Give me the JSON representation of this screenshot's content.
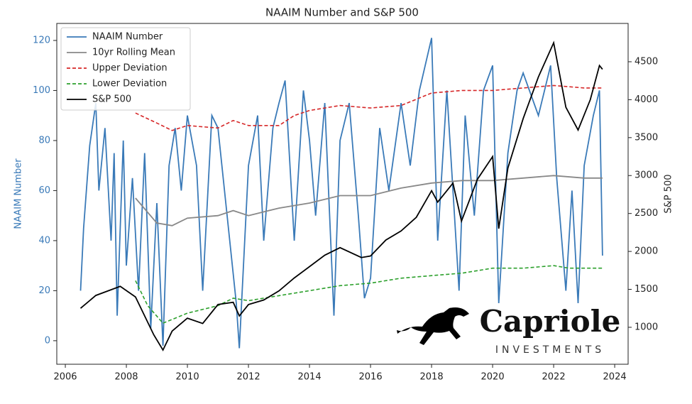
{
  "chart_data": {
    "type": "line",
    "title": "NAAIM Number and S&P 500",
    "ylabel": "NAAIM Number",
    "y2label": "S&P 500",
    "xlim": [
      2005.72,
      2024.44
    ],
    "xticks": [
      2006,
      2008,
      2010,
      2012,
      2014,
      2016,
      2018,
      2020,
      2022,
      2024
    ],
    "ylim": [
      -9.4,
      126.8
    ],
    "yticks": [
      0,
      20,
      40,
      60,
      80,
      100,
      120
    ],
    "y2lim": [
      513,
      5005
    ],
    "y2ticks": [
      1000,
      1500,
      2000,
      2500,
      3000,
      3500,
      4000,
      4500
    ],
    "legend": "upper left",
    "logo": {
      "name": "Capriole",
      "tagline": "INVESTMENTS"
    },
    "series": [
      {
        "name": "NAAIM Number",
        "color": "#3a7ab8",
        "style": "solid",
        "x": [
          2006.5,
          2006.6,
          2006.8,
          2007.0,
          2007.1,
          2007.3,
          2007.5,
          2007.6,
          2007.7,
          2007.9,
          2008.0,
          2008.2,
          2008.4,
          2008.6,
          2008.8,
          2009.0,
          2009.2,
          2009.4,
          2009.6,
          2009.8,
          2010.0,
          2010.3,
          2010.5,
          2010.8,
          2011.0,
          2011.3,
          2011.6,
          2011.7,
          2012.0,
          2012.3,
          2012.5,
          2012.8,
          2013.0,
          2013.2,
          2013.5,
          2013.8,
          2014.0,
          2014.2,
          2014.5,
          2014.8,
          2015.0,
          2015.3,
          2015.6,
          2015.8,
          2016.0,
          2016.3,
          2016.6,
          2017.0,
          2017.3,
          2017.6,
          2018.0,
          2018.2,
          2018.5,
          2018.9,
          2019.1,
          2019.4,
          2019.7,
          2020.0,
          2020.2,
          2020.5,
          2020.8,
          2021.0,
          2021.5,
          2021.9,
          2022.1,
          2022.4,
          2022.6,
          2022.8,
          2023.0,
          2023.3,
          2023.5,
          2023.6
        ],
        "values": [
          20,
          45,
          78,
          95,
          60,
          85,
          40,
          75,
          10,
          80,
          30,
          65,
          20,
          75,
          5,
          55,
          -2,
          70,
          85,
          60,
          90,
          70,
          20,
          90,
          85,
          50,
          15,
          -3,
          70,
          90,
          40,
          85,
          95,
          104,
          40,
          100,
          80,
          50,
          95,
          10,
          80,
          95,
          50,
          17,
          25,
          85,
          60,
          95,
          70,
          100,
          121,
          40,
          100,
          20,
          90,
          50,
          100,
          110,
          15,
          75,
          100,
          107,
          90,
          110,
          65,
          20,
          60,
          15,
          70,
          90,
          100,
          34
        ]
      },
      {
        "name": "10yr Rolling Mean",
        "color": "#888888",
        "style": "solid",
        "x": [
          2008.3,
          2009,
          2009.5,
          2010,
          2011,
          2011.5,
          2012,
          2013,
          2014,
          2015,
          2016,
          2017,
          2018,
          2019,
          2020,
          2021,
          2022,
          2023,
          2023.6
        ],
        "values": [
          57,
          47,
          46,
          49,
          50,
          52,
          50,
          53,
          55,
          58,
          58,
          61,
          63,
          64,
          64,
          65,
          66,
          65,
          65
        ]
      },
      {
        "name": "Upper Deviation",
        "color": "#d62728",
        "style": "dashed",
        "x": [
          2008.3,
          2009,
          2009.5,
          2010,
          2011,
          2011.5,
          2012,
          2013,
          2013.5,
          2014,
          2015,
          2016,
          2017,
          2018,
          2019,
          2020,
          2021,
          2022,
          2023,
          2023.6
        ],
        "values": [
          91,
          87,
          84,
          86,
          85,
          88,
          86,
          86,
          90,
          92,
          94,
          93,
          94,
          99,
          100,
          100,
          101,
          102,
          101,
          101
        ]
      },
      {
        "name": "Lower Deviation",
        "color": "#2ca02c",
        "style": "dashed",
        "x": [
          2008.3,
          2008.7,
          2009.2,
          2010,
          2011,
          2011.5,
          2012,
          2013,
          2014,
          2015,
          2016,
          2017,
          2018,
          2019,
          2020,
          2021,
          2022,
          2022.5,
          2023,
          2023.6
        ],
        "values": [
          24,
          14,
          7,
          11,
          14,
          17,
          16,
          18,
          20,
          22,
          23,
          25,
          26,
          27,
          29,
          29,
          30,
          29,
          29,
          29
        ]
      },
      {
        "name": "S&P 500",
        "color": "#000000",
        "style": "solid",
        "axis": "y2",
        "x": [
          2006.5,
          2007,
          2007.8,
          2008.3,
          2008.9,
          2009.2,
          2009.5,
          2010,
          2010.5,
          2011,
          2011.5,
          2011.7,
          2012,
          2012.5,
          2013,
          2013.5,
          2014,
          2014.5,
          2015,
          2015.7,
          2016,
          2016.5,
          2017,
          2017.5,
          2018,
          2018.2,
          2018.7,
          2018.98,
          2019.5,
          2020,
          2020.2,
          2020.5,
          2021,
          2021.5,
          2022,
          2022.4,
          2022.8,
          2023.2,
          2023.5,
          2023.6
        ],
        "values": [
          1250,
          1420,
          1540,
          1400,
          900,
          700,
          950,
          1120,
          1050,
          1300,
          1330,
          1150,
          1300,
          1360,
          1480,
          1650,
          1800,
          1950,
          2050,
          1920,
          1940,
          2150,
          2270,
          2450,
          2800,
          2650,
          2900,
          2400,
          2950,
          3250,
          2300,
          3100,
          3750,
          4300,
          4750,
          3900,
          3600,
          4000,
          4450,
          4400
        ]
      }
    ]
  }
}
